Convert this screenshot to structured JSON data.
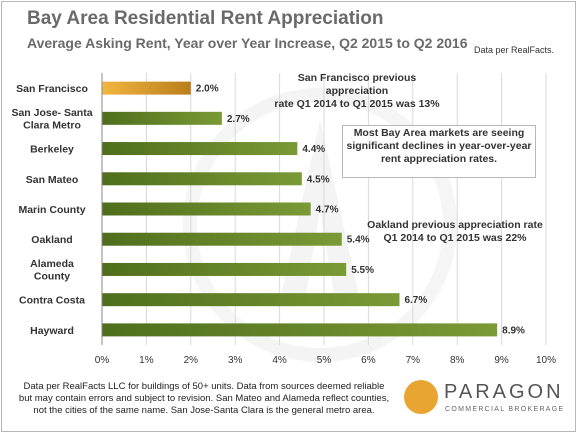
{
  "header": {
    "title": "Bay Area Residential Rent Appreciation",
    "subtitle": "Average Asking Rent, Year over Year Increase, Q2 2015 to Q2 2016",
    "source": "Data per RealFacts."
  },
  "annotations": {
    "sf_note": [
      "San Francisco previous appreciation",
      "rate Q1 2014 to Q1 2015  was 13%"
    ],
    "box_note": [
      "Most Bay Area markets are seeing",
      "significant  declines in year-over-year",
      "rent appreciation rates."
    ],
    "oakland_note": [
      "Oakland previous appreciation rate",
      "Q1 2014 to Q1 2015  was 22%"
    ]
  },
  "footer": {
    "disclaimer": "Data per RealFacts LLC for buildings of 50+ units. Data from sources deemed reliable but may contain errors and subject to revision. San Mateo and Alameda reflect counties, not the cities of the same name. San Jose-Santa Clara is the general metro area."
  },
  "logo": {
    "name": "PARAGON",
    "tagline": "COMMERCIAL BROKERAGE",
    "color": "#e8a531"
  },
  "colors": {
    "highlight_bar": "#e8a531",
    "bar": "#7a9a36",
    "text": "#333333",
    "title": "#6a6a6a",
    "grid": "#d9d9d9"
  },
  "chart_data": {
    "type": "bar",
    "orientation": "horizontal",
    "categories": [
      [
        "San Francisco"
      ],
      [
        "San Jose- Santa",
        "Clara Metro"
      ],
      [
        "Berkeley"
      ],
      [
        "San Mateo"
      ],
      [
        "Marin County"
      ],
      [
        "Oakland"
      ],
      [
        "Alameda",
        "County"
      ],
      [
        "Contra Costa"
      ],
      [
        "Hayward"
      ]
    ],
    "values": [
      2.0,
      2.7,
      4.4,
      4.5,
      4.7,
      5.4,
      5.5,
      6.7,
      8.9
    ],
    "value_labels": [
      "2.0%",
      "2.7%",
      "4.4%",
      "4.5%",
      "4.7%",
      "5.4%",
      "5.5%",
      "6.7%",
      "8.9%"
    ],
    "highlight_index": 0,
    "xlim": [
      0,
      10
    ],
    "xticks": [
      "0%",
      "1%",
      "2%",
      "3%",
      "4%",
      "5%",
      "6%",
      "7%",
      "8%",
      "9%",
      "10%"
    ],
    "grid": true
  }
}
